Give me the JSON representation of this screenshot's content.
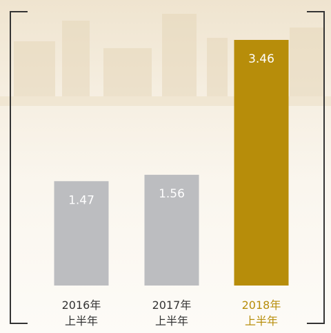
{
  "chart_data": {
    "type": "bar",
    "categories": [
      "2016年\n上半年",
      "2017年\n上半年",
      "2018年\n上半年"
    ],
    "values": [
      1.47,
      1.56,
      3.46
    ],
    "colors": [
      "#bcbdc0",
      "#bcbdc0",
      "#b78d0a"
    ],
    "label_colors": [
      "#333333",
      "#333333",
      "#b78d0a"
    ]
  }
}
